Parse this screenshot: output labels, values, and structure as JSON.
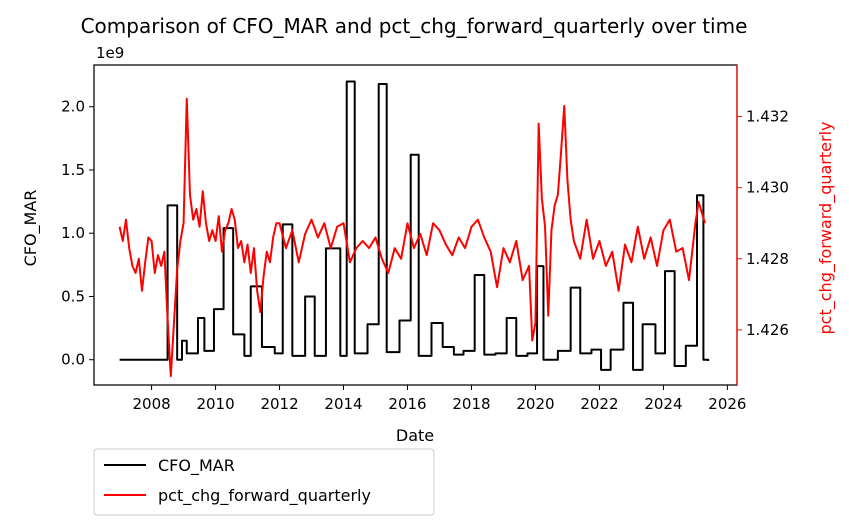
{
  "chart_data": {
    "type": "line",
    "title": "Comparison of CFO_MAR and pct_chg_forward_quarterly over time",
    "xlabel": "Date",
    "ylabel_left": "CFO_MAR",
    "ylabel_right": "pct_chg_forward_quarterly",
    "left_axis_offset_label": "1e9",
    "xlim": [
      2006.2,
      2026.3
    ],
    "ylim_left": [
      -0.2,
      2.33
    ],
    "ylim_right": [
      1.42445,
      1.43345
    ],
    "x_ticks": [
      2008,
      2010,
      2012,
      2014,
      2016,
      2018,
      2020,
      2022,
      2024,
      2026
    ],
    "x_tick_labels": [
      "2008",
      "2010",
      "2012",
      "2014",
      "2016",
      "2018",
      "2020",
      "2022",
      "2024",
      "2026"
    ],
    "y_left_ticks": [
      0.0,
      0.5,
      1.0,
      1.5,
      2.0
    ],
    "y_left_tick_labels": [
      "0.0",
      "0.5",
      "1.0",
      "1.5",
      "2.0"
    ],
    "y_right_ticks": [
      1.426,
      1.428,
      1.43,
      1.432
    ],
    "y_right_tick_labels": [
      "1.426",
      "1.428",
      "1.430",
      "1.432"
    ],
    "grid": false,
    "legend": {
      "placement": "below-left"
    },
    "series": [
      {
        "name": "CFO_MAR",
        "axis": "left",
        "color": "#000000",
        "step": true,
        "x": [
          2007.0,
          2008.5,
          2008.8,
          2008.95,
          2009.1,
          2009.45,
          2009.65,
          2009.95,
          2010.25,
          2010.55,
          2010.9,
          2011.1,
          2011.45,
          2011.85,
          2012.1,
          2012.4,
          2012.8,
          2013.1,
          2013.45,
          2013.9,
          2014.1,
          2014.35,
          2014.75,
          2015.1,
          2015.35,
          2015.75,
          2016.1,
          2016.35,
          2016.75,
          2017.1,
          2017.45,
          2017.75,
          2018.1,
          2018.4,
          2018.75,
          2019.1,
          2019.4,
          2019.75,
          2020.05,
          2020.25,
          2020.7,
          2021.1,
          2021.4,
          2021.75,
          2022.05,
          2022.35,
          2022.75,
          2023.05,
          2023.35,
          2023.75,
          2024.05,
          2024.35,
          2024.7,
          2025.05,
          2025.25,
          2025.4
        ],
        "values": [
          0.0,
          1.22,
          0.0,
          0.15,
          0.05,
          0.33,
          0.07,
          0.4,
          1.04,
          0.2,
          0.03,
          0.58,
          0.1,
          0.05,
          1.07,
          0.03,
          0.5,
          0.03,
          0.88,
          0.03,
          2.2,
          0.05,
          0.28,
          2.18,
          0.06,
          0.31,
          1.62,
          0.03,
          0.29,
          0.1,
          0.04,
          0.07,
          0.67,
          0.04,
          0.05,
          0.33,
          0.03,
          0.05,
          0.74,
          0.0,
          0.07,
          0.57,
          0.05,
          0.08,
          -0.08,
          0.08,
          0.45,
          -0.08,
          0.28,
          0.05,
          0.7,
          -0.05,
          0.11,
          1.3,
          0.0,
          -0.01
        ]
      },
      {
        "name": "pct_chg_forward_quarterly",
        "axis": "right",
        "color": "#ff0000",
        "step": false,
        "x": [
          2007.0,
          2007.1,
          2007.2,
          2007.3,
          2007.4,
          2007.5,
          2007.6,
          2007.7,
          2007.8,
          2007.9,
          2008.0,
          2008.1,
          2008.2,
          2008.3,
          2008.4,
          2008.5,
          2008.6,
          2008.7,
          2008.8,
          2008.9,
          2009.0,
          2009.1,
          2009.2,
          2009.3,
          2009.4,
          2009.5,
          2009.6,
          2009.7,
          2009.8,
          2009.9,
          2010.0,
          2010.1,
          2010.2,
          2010.3,
          2010.4,
          2010.5,
          2010.6,
          2010.7,
          2010.8,
          2010.9,
          2011.0,
          2011.1,
          2011.2,
          2011.3,
          2011.4,
          2011.5,
          2011.6,
          2011.7,
          2011.8,
          2011.9,
          2012.0,
          2012.2,
          2012.4,
          2012.6,
          2012.8,
          2013.0,
          2013.2,
          2013.4,
          2013.6,
          2013.8,
          2014.0,
          2014.2,
          2014.4,
          2014.6,
          2014.8,
          2015.0,
          2015.2,
          2015.4,
          2015.6,
          2015.8,
          2016.0,
          2016.2,
          2016.4,
          2016.6,
          2016.8,
          2017.0,
          2017.2,
          2017.4,
          2017.6,
          2017.8,
          2018.0,
          2018.2,
          2018.4,
          2018.6,
          2018.8,
          2019.0,
          2019.2,
          2019.4,
          2019.6,
          2019.8,
          2019.9,
          2020.0,
          2020.1,
          2020.2,
          2020.3,
          2020.4,
          2020.5,
          2020.6,
          2020.7,
          2020.8,
          2020.9,
          2021.0,
          2021.1,
          2021.2,
          2021.4,
          2021.6,
          2021.8,
          2022.0,
          2022.2,
          2022.4,
          2022.6,
          2022.8,
          2023.0,
          2023.2,
          2023.4,
          2023.6,
          2023.8,
          2024.0,
          2024.2,
          2024.4,
          2024.6,
          2024.8,
          2025.0,
          2025.1,
          2025.2,
          2025.3
        ],
        "values": [
          1.4289,
          1.4285,
          1.4291,
          1.4283,
          1.4278,
          1.4276,
          1.428,
          1.4271,
          1.4279,
          1.4286,
          1.4285,
          1.4276,
          1.4281,
          1.4278,
          1.4282,
          1.4263,
          1.4247,
          1.4262,
          1.4277,
          1.4285,
          1.429,
          1.4325,
          1.4298,
          1.4291,
          1.4294,
          1.4289,
          1.4299,
          1.429,
          1.4285,
          1.4288,
          1.4285,
          1.4292,
          1.4282,
          1.4288,
          1.429,
          1.4294,
          1.4291,
          1.4283,
          1.4285,
          1.4279,
          1.4284,
          1.4276,
          1.4283,
          1.4271,
          1.4265,
          1.4275,
          1.4282,
          1.4279,
          1.4286,
          1.429,
          1.429,
          1.4283,
          1.4288,
          1.4279,
          1.4287,
          1.4291,
          1.4286,
          1.429,
          1.4283,
          1.4289,
          1.429,
          1.4279,
          1.4283,
          1.4285,
          1.4283,
          1.4286,
          1.428,
          1.4276,
          1.4283,
          1.428,
          1.429,
          1.4283,
          1.4287,
          1.4281,
          1.429,
          1.4288,
          1.4284,
          1.4281,
          1.4286,
          1.4283,
          1.4289,
          1.4291,
          1.4286,
          1.4282,
          1.4272,
          1.4283,
          1.4279,
          1.4285,
          1.4274,
          1.4278,
          1.4257,
          1.4262,
          1.4318,
          1.4297,
          1.4289,
          1.4264,
          1.4288,
          1.4295,
          1.4298,
          1.431,
          1.4323,
          1.4302,
          1.4291,
          1.4285,
          1.428,
          1.4291,
          1.428,
          1.4285,
          1.4278,
          1.4282,
          1.4271,
          1.4284,
          1.4279,
          1.4289,
          1.428,
          1.4286,
          1.4278,
          1.4288,
          1.4291,
          1.4282,
          1.4283,
          1.4274,
          1.429,
          1.4296,
          1.4293,
          1.429
        ]
      }
    ]
  }
}
